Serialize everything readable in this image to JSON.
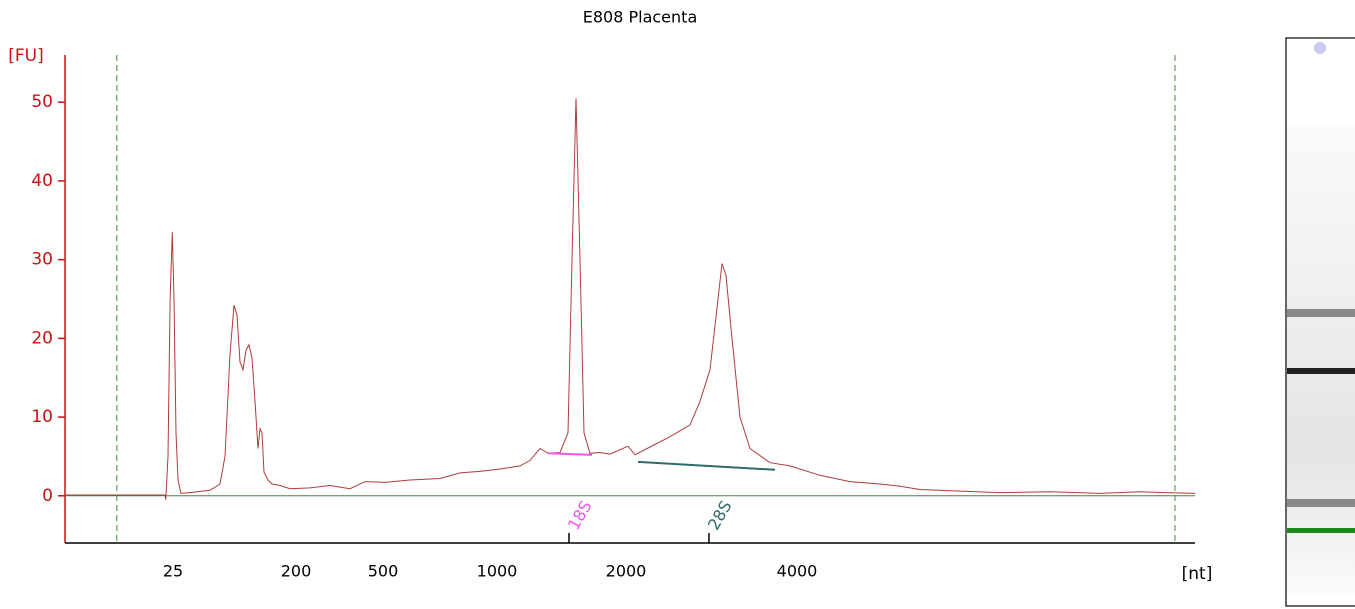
{
  "chart_data": {
    "type": "line",
    "title": "E808 Placenta",
    "y_label": "[FU]",
    "x_label": "[nt]",
    "xlim": [
      10,
      10000
    ],
    "xticks": [
      25,
      200,
      500,
      1000,
      2000,
      4000
    ],
    "ylim": [
      -6,
      56
    ],
    "yticks": [
      0,
      10,
      20,
      30,
      40,
      50
    ],
    "color": "#b03a3a",
    "baseline_color": "#3d8a3d",
    "x": [
      10,
      23.9,
      24.0,
      24.3,
      24.6,
      24.9,
      26.4,
      29.3,
      32.1,
      36.4,
      49.2,
      77.6,
      91.9,
      99.0,
      106.1,
      111.8,
      116.1,
      120.3,
      124.6,
      128.9,
      133.1,
      137.4,
      141.7,
      146.0,
      148.8,
      151.6,
      154.5,
      160.2,
      165.9,
      177.2,
      191.5,
      248.3,
      317.2,
      386.2,
      437.9,
      508.8,
      618.4,
      750,
      837.7,
      925.4,
      1023.3,
      1178.3,
      1255.8,
      1333.3,
      1395.3,
      1488.4,
      1550.4,
      1581.4,
      1612.4,
      1643.4,
      1674.4,
      1720.9,
      1798.4,
      1875.9,
      2023.4,
      2105.3,
      2280.7,
      2514.6,
      2748.5,
      2865.5,
      2982.5,
      3076.0,
      3122.8,
      3169.6,
      3239.8,
      3333.3,
      3450.3,
      3684.2,
      3918.1,
      4346.7,
      4799.0,
      5251.2,
      5552.8,
      5854.3,
      6457.3,
      7060.3,
      7814.1,
      8567.8,
      9170.9,
      9547.7,
      10000
    ],
    "values": [
      0.1,
      0.1,
      -0.5,
      5,
      25,
      33.5,
      25,
      8,
      2,
      0.3,
      0.4,
      0.7,
      1.5,
      5,
      18,
      24.2,
      23,
      17,
      16,
      18.5,
      19.2,
      17.5,
      12,
      6,
      8.5,
      8,
      3,
      2,
      1.5,
      1.3,
      0.9,
      1,
      1.3,
      0.9,
      1.8,
      1.7,
      2,
      2.2,
      2.9,
      3.1,
      3.4,
      3.8,
      4.5,
      6,
      5.4,
      5.5,
      8,
      30,
      50.5,
      30,
      8,
      5.4,
      5.5,
      5.3,
      6.3,
      5.2,
      6.2,
      7.5,
      9,
      12,
      16,
      25,
      29.5,
      28,
      20,
      10,
      6,
      4.2,
      3.8,
      2.6,
      1.8,
      1.5,
      1.2,
      0.8,
      0.6,
      0.4,
      0.5,
      0.3,
      0.5,
      0.4,
      0.3
    ],
    "peaks": [
      {
        "label": "18S",
        "x": 1558,
        "baseline_x": [
          1395,
          1736
        ],
        "baseline_y": [
          5.4,
          5.2
        ],
        "color": "#ee55ee"
      },
      {
        "label": "28S",
        "x": 2970,
        "baseline_x": [
          2140,
          3743
        ],
        "baseline_y": [
          4.3,
          3.3
        ],
        "color": "#2e6b6b"
      }
    ],
    "markers": [
      17.2,
      9698
    ]
  }
}
